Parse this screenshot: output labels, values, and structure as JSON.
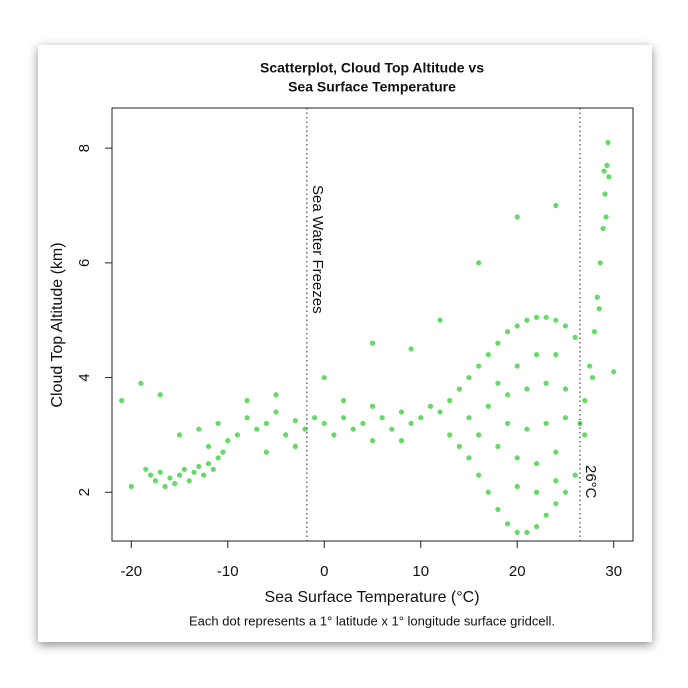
{
  "chart_data": {
    "type": "scatter",
    "title": [
      "Scatterplot, Cloud Top Altitude vs",
      "Sea Surface Temperature"
    ],
    "x_label": "Sea Surface Temperature (°C)",
    "y_label": "Cloud Top Altitude (km)",
    "caption": "Each dot represents a 1° latitude x 1° longitude surface gridcell.",
    "color": "#22cc22",
    "xlim": [
      -22,
      32
    ],
    "ylim": [
      1.15,
      8.7
    ],
    "xticks": [
      -20,
      -10,
      0,
      10,
      20,
      30
    ],
    "yticks": [
      2,
      4,
      6,
      8
    ],
    "vlines": [
      {
        "x": -1.8,
        "label": "Sea Water Freezes"
      },
      {
        "x": 26.5,
        "label": "26°C"
      }
    ],
    "x": [
      -18.5,
      -18,
      -17.5,
      -17,
      -16.5,
      -16,
      -15.5,
      -15,
      -14.5,
      -14,
      -13.5,
      -13,
      -12.5,
      -12,
      -11.5,
      -11,
      -10.5,
      -10,
      -15,
      -13,
      -11,
      -9,
      -8,
      -7,
      -6,
      -5,
      -4,
      -3,
      -2,
      -1,
      0,
      1,
      2,
      3,
      4,
      5,
      6,
      7,
      8,
      9,
      10,
      11,
      12,
      -8,
      -5,
      -12,
      -6,
      -3,
      2,
      5,
      8,
      13,
      14,
      15,
      16,
      17,
      18,
      19,
      20,
      21,
      22,
      23,
      24,
      25,
      26,
      13,
      14,
      15,
      16,
      17,
      18,
      19,
      20,
      21,
      22,
      23,
      24,
      25,
      26,
      15,
      17,
      19,
      21,
      23,
      25,
      16,
      18,
      20,
      22,
      24,
      18,
      20,
      22,
      24,
      20,
      22,
      24,
      19,
      21,
      23,
      25,
      26.5,
      27,
      27.5,
      28,
      28.3,
      28.6,
      28.9,
      29.1,
      29.3,
      29.4,
      29,
      28.5,
      27.8,
      29.5,
      29.2,
      -20,
      -21,
      -19,
      -17,
      0,
      5,
      9,
      12,
      16,
      20,
      24,
      27,
      30
    ],
    "values": [
      2.4,
      2.3,
      2.2,
      2.35,
      2.1,
      2.25,
      2.15,
      2.3,
      2.4,
      2.2,
      2.35,
      2.45,
      2.3,
      2.5,
      2.4,
      2.6,
      2.7,
      2.9,
      3.0,
      3.1,
      3.2,
      3.0,
      3.3,
      3.1,
      3.2,
      3.4,
      3.0,
      3.25,
      3.1,
      3.3,
      3.2,
      3.0,
      3.3,
      3.1,
      3.2,
      2.9,
      3.3,
      3.1,
      3.4,
      3.2,
      3.3,
      3.5,
      3.4,
      3.6,
      3.7,
      2.8,
      2.7,
      2.8,
      3.6,
      3.5,
      2.9,
      3.6,
      3.8,
      4.0,
      4.2,
      4.4,
      4.6,
      4.8,
      4.9,
      5.0,
      5.05,
      5.05,
      5.0,
      4.9,
      4.7,
      3.0,
      2.8,
      2.6,
      2.3,
      2.0,
      1.7,
      1.45,
      1.3,
      1.3,
      1.4,
      1.6,
      1.8,
      2.0,
      2.3,
      3.3,
      3.5,
      3.7,
      3.8,
      3.9,
      3.8,
      3.0,
      2.8,
      2.6,
      2.5,
      2.7,
      3.9,
      4.2,
      4.4,
      4.4,
      2.1,
      2.0,
      2.2,
      3.2,
      3.1,
      3.2,
      3.3,
      3.2,
      3.6,
      4.2,
      4.8,
      5.4,
      6.0,
      6.6,
      7.2,
      7.7,
      8.1,
      7.6,
      5.2,
      4.0,
      7.5,
      6.8,
      2.1,
      3.6,
      3.9,
      3.7,
      4.0,
      4.6,
      4.5,
      5.0,
      6.0,
      6.8,
      7.0,
      3.0,
      4.1
    ]
  }
}
